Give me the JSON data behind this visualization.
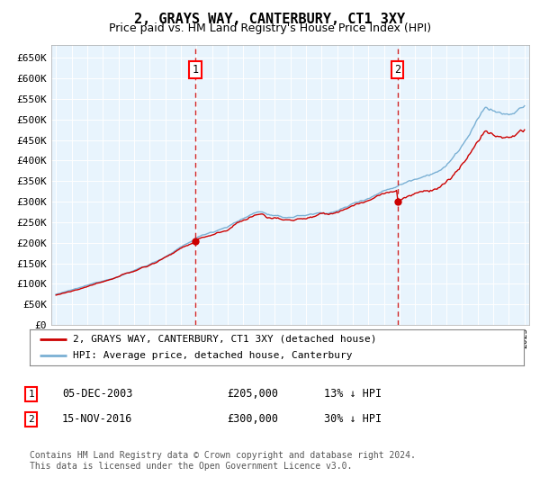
{
  "title": "2, GRAYS WAY, CANTERBURY, CT1 3XY",
  "subtitle": "Price paid vs. HM Land Registry's House Price Index (HPI)",
  "ylabel_ticks": [
    "£0",
    "£50K",
    "£100K",
    "£150K",
    "£200K",
    "£250K",
    "£300K",
    "£350K",
    "£400K",
    "£450K",
    "£500K",
    "£550K",
    "£600K",
    "£650K"
  ],
  "ylim": [
    0,
    680000
  ],
  "ytick_values": [
    0,
    50000,
    100000,
    150000,
    200000,
    250000,
    300000,
    350000,
    400000,
    450000,
    500000,
    550000,
    600000,
    650000
  ],
  "year_start": 1995,
  "year_end": 2025,
  "hpi_color": "#7ab0d4",
  "hpi_fill_color": "#d0e8f8",
  "price_color": "#cc0000",
  "transaction1_date": 2003.92,
  "transaction1_price": 205000,
  "transaction2_date": 2016.88,
  "transaction2_price": 300000,
  "background_color": "#e8f4fd",
  "legend_line1": "2, GRAYS WAY, CANTERBURY, CT1 3XY (detached house)",
  "legend_line2": "HPI: Average price, detached house, Canterbury",
  "annotation1_label": "1",
  "annotation1_text": "05-DEC-2003",
  "annotation1_price": "£205,000",
  "annotation1_hpi": "13% ↓ HPI",
  "annotation2_label": "2",
  "annotation2_text": "15-NOV-2016",
  "annotation2_price": "£300,000",
  "annotation2_hpi": "30% ↓ HPI",
  "footer": "Contains HM Land Registry data © Crown copyright and database right 2024.\nThis data is licensed under the Open Government Licence v3.0."
}
